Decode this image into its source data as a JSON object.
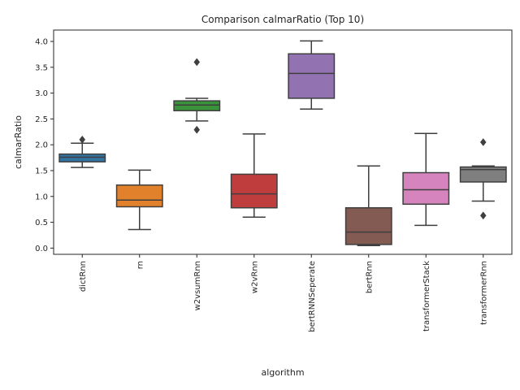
{
  "chart_data": {
    "type": "box",
    "title": "Comparison calmarRatio (Top 10)",
    "xlabel": "algorithm",
    "ylabel": "calmarRatio",
    "ylim": [
      -0.12,
      4.22
    ],
    "yticks": [
      0.0,
      0.5,
      1.0,
      1.5,
      2.0,
      2.5,
      3.0,
      3.5,
      4.0
    ],
    "ytick_labels": [
      "0.0",
      "0.5",
      "1.0",
      "1.5",
      "2.0",
      "2.5",
      "3.0",
      "3.5",
      "4.0"
    ],
    "grid": false,
    "legend": "none",
    "categories": [
      "dictRnn",
      "rn",
      "w2vsumRnn",
      "w2vRnn",
      "bertRNNSeperate",
      "bertRnn",
      "transformerStack",
      "transformerRnn"
    ],
    "boxes": [
      {
        "category": "dictRnn",
        "color": "#3274a1",
        "whisker_low": 1.56,
        "q1": 1.67,
        "median": 1.76,
        "q3": 1.82,
        "whisker_high": 2.03,
        "outliers": [
          2.1
        ]
      },
      {
        "category": "rn",
        "color": "#e1812c",
        "whisker_low": 0.36,
        "q1": 0.8,
        "median": 0.93,
        "q3": 1.22,
        "whisker_high": 1.51,
        "outliers": []
      },
      {
        "category": "w2vsumRnn",
        "color": "#3a923a",
        "whisker_low": 2.46,
        "q1": 2.66,
        "median": 2.77,
        "q3": 2.85,
        "whisker_high": 2.9,
        "outliers": [
          3.6,
          2.29
        ]
      },
      {
        "category": "w2vRnn",
        "color": "#c03d3e",
        "whisker_low": 0.6,
        "q1": 0.78,
        "median": 1.05,
        "q3": 1.43,
        "whisker_high": 2.21,
        "outliers": []
      },
      {
        "category": "bertRNNSeperate",
        "color": "#9372b2",
        "whisker_low": 2.69,
        "q1": 2.9,
        "median": 3.38,
        "q3": 3.76,
        "whisker_high": 4.01,
        "outliers": []
      },
      {
        "category": "bertRnn",
        "color": "#845b53",
        "whisker_low": 0.05,
        "q1": 0.07,
        "median": 0.31,
        "q3": 0.78,
        "whisker_high": 1.59,
        "outliers": []
      },
      {
        "category": "transformerStack",
        "color": "#d684bd",
        "whisker_low": 0.44,
        "q1": 0.85,
        "median": 1.13,
        "q3": 1.46,
        "whisker_high": 2.22,
        "outliers": []
      },
      {
        "category": "transformerRnn",
        "color": "#7f7f7f",
        "whisker_low": 0.91,
        "q1": 1.28,
        "median": 1.52,
        "q3": 1.57,
        "whisker_high": 1.59,
        "outliers": [
          2.05,
          0.63
        ]
      }
    ]
  }
}
